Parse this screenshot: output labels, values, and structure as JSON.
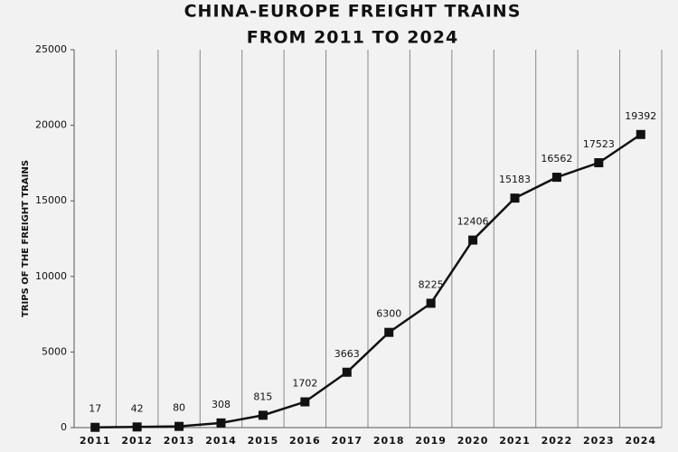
{
  "chart_data": {
    "type": "line",
    "title": [
      "CHINA-EUROPE FREIGHT TRAINS",
      "FROM 2011 TO 2024"
    ],
    "y_label": "TRIPS OF THE FREIGHT TRAINS",
    "categories": [
      "2011",
      "2012",
      "2013",
      "2014",
      "2015",
      "2016",
      "2017",
      "2018",
      "2019",
      "2020",
      "2021",
      "2022",
      "2023",
      "2024"
    ],
    "values": [
      17,
      42,
      80,
      308,
      815,
      1702,
      3663,
      6300,
      8225,
      12406,
      15183,
      16562,
      17523,
      19392
    ],
    "color": "#111111",
    "ylim": [
      0,
      25000
    ],
    "yticks": [
      0,
      5000,
      10000,
      15000,
      20000,
      25000
    ],
    "grid": true
  }
}
